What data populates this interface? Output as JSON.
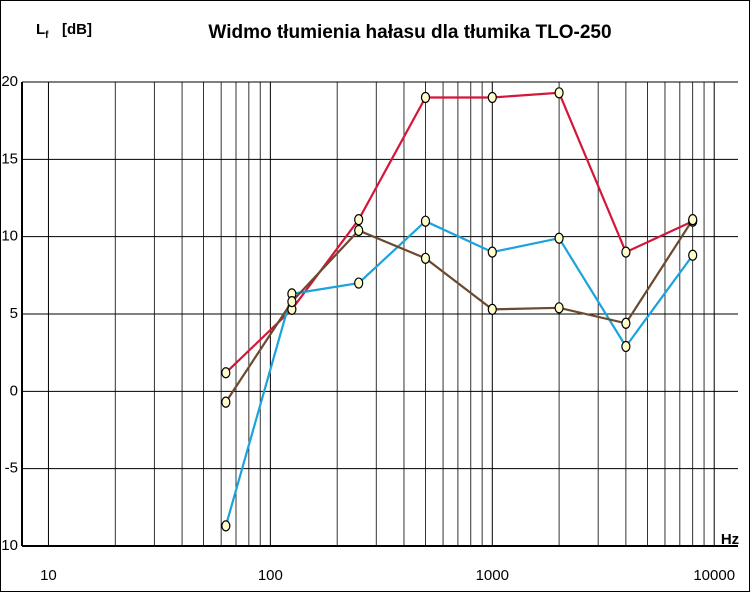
{
  "chart_data": {
    "type": "line",
    "title": "Widmo tłumienia hałasu dla tłumika TLO-250",
    "y_label": "L",
    "y_label_sub": "f",
    "y_unit": "[dB]",
    "x_label": "Hz",
    "x": [
      63,
      125,
      250,
      500,
      1000,
      2000,
      4000,
      8000
    ],
    "series": [
      {
        "color": "#d4163a",
        "values": [
          1.2,
          5.3,
          11.1,
          19,
          19,
          19.3,
          9,
          11
        ]
      },
      {
        "color": "#1aa3dc",
        "values": [
          -8.7,
          6.3,
          7,
          11,
          9,
          9.9,
          2.9,
          8.8
        ]
      },
      {
        "color": "#6b4a2f",
        "values": [
          -0.7,
          5.8,
          10.4,
          8.6,
          5.3,
          5.4,
          4.4,
          11.1
        ]
      }
    ],
    "xlog": true,
    "xlim": [
      7.6,
      12800
    ],
    "xticks": [
      10,
      100,
      1000,
      10000
    ],
    "x_minor_ticks": [
      20,
      30,
      40,
      50,
      60,
      70,
      80,
      90,
      200,
      300,
      400,
      500,
      600,
      700,
      800,
      900,
      2000,
      3000,
      4000,
      5000,
      6000,
      7000,
      8000,
      9000
    ],
    "ylim": [
      -10,
      20
    ],
    "yticks": [
      -10,
      -5,
      0,
      5,
      10,
      15,
      20
    ],
    "grid": true,
    "marker_color": "#ffffcc"
  }
}
